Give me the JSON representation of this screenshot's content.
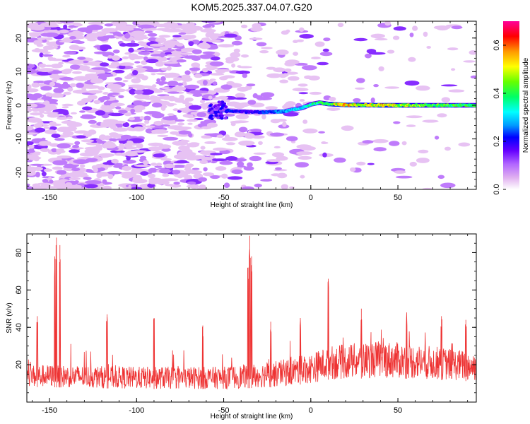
{
  "title": "KOM5.2025.337.04.07.G20",
  "chart_data": [
    {
      "type": "heatmap",
      "xlabel": "Height of straight line (km)",
      "ylabel": "Frequency (Hz)",
      "xlim": [
        -163,
        95
      ],
      "ylim": [
        -25,
        25
      ],
      "xticks": [
        -150,
        -100,
        -50,
        0,
        50
      ],
      "yticks": [
        -20,
        -10,
        0,
        10,
        20
      ],
      "colorbar": {
        "label": "Normalized spectral amplitude",
        "range": [
          0.0,
          0.7
        ],
        "ticks": [
          0.0,
          0.2,
          0.4,
          0.6
        ],
        "colors": [
          "#ffffff",
          "#e0b0f0",
          "#b266ff",
          "#6600ff",
          "#0000ff",
          "#0099ff",
          "#00ffff",
          "#00ff66",
          "#66ff00",
          "#ffff00",
          "#ff9900",
          "#ff0000",
          "#ff0099"
        ]
      },
      "ridge": [
        {
          "x": -58,
          "y": -2.0,
          "v": 0.22
        },
        {
          "x": -50,
          "y": -1.5,
          "v": 0.25
        },
        {
          "x": -35,
          "y": -2.0,
          "v": 0.2
        },
        {
          "x": -25,
          "y": -2.0,
          "v": 0.26
        },
        {
          "x": -15,
          "y": -1.8,
          "v": 0.3
        },
        {
          "x": -10,
          "y": -1.2,
          "v": 0.32
        },
        {
          "x": -5,
          "y": -0.8,
          "v": 0.34
        },
        {
          "x": 0,
          "y": 0.3,
          "v": 0.38
        },
        {
          "x": 5,
          "y": 0.8,
          "v": 0.4
        },
        {
          "x": 10,
          "y": 0.4,
          "v": 0.45
        },
        {
          "x": 20,
          "y": 0.1,
          "v": 0.6
        },
        {
          "x": 30,
          "y": 0.1,
          "v": 0.5
        },
        {
          "x": 40,
          "y": 0.0,
          "v": 0.55
        },
        {
          "x": 50,
          "y": 0.0,
          "v": 0.5
        },
        {
          "x": 60,
          "y": 0.0,
          "v": 0.48
        },
        {
          "x": 70,
          "y": 0.0,
          "v": 0.46
        },
        {
          "x": 80,
          "y": 0.0,
          "v": 0.44
        },
        {
          "x": 95,
          "y": 0.0,
          "v": 0.42
        }
      ]
    },
    {
      "type": "line",
      "xlabel": "Height of straight line (km)",
      "ylabel": "SNR (v/v)",
      "xlim": [
        -163,
        95
      ],
      "ylim": [
        0,
        90
      ],
      "xticks": [
        -150,
        -100,
        -50,
        0,
        50
      ],
      "yticks": [
        20,
        40,
        60,
        80
      ],
      "color": "#ee3333",
      "envelope": [
        {
          "x": -163,
          "base": 8,
          "amp": 12
        },
        {
          "x": -150,
          "base": 8,
          "amp": 12
        },
        {
          "x": -100,
          "base": 7,
          "amp": 12
        },
        {
          "x": -50,
          "base": 7,
          "amp": 12
        },
        {
          "x": -20,
          "base": 8,
          "amp": 14
        },
        {
          "x": 0,
          "base": 10,
          "amp": 16
        },
        {
          "x": 10,
          "base": 12,
          "amp": 18
        },
        {
          "x": 40,
          "base": 13,
          "amp": 20
        },
        {
          "x": 70,
          "base": 12,
          "amp": 18
        },
        {
          "x": 95,
          "base": 11,
          "amp": 16
        }
      ],
      "peaks": [
        {
          "x": -146,
          "y": 88
        },
        {
          "x": -144,
          "y": 84
        },
        {
          "x": -147,
          "y": 78
        },
        {
          "x": -35,
          "y": 89
        },
        {
          "x": -34,
          "y": 78
        },
        {
          "x": -36,
          "y": 72
        },
        {
          "x": 10,
          "y": 66
        },
        {
          "x": -117,
          "y": 47
        },
        {
          "x": -90,
          "y": 45
        },
        {
          "x": -157,
          "y": 46
        },
        {
          "x": -62,
          "y": 41
        },
        {
          "x": 29,
          "y": 50
        },
        {
          "x": 55,
          "y": 48
        },
        {
          "x": 75,
          "y": 46
        },
        {
          "x": 89,
          "y": 44
        },
        {
          "x": -6,
          "y": 45
        },
        {
          "x": -23,
          "y": 43
        }
      ]
    }
  ]
}
